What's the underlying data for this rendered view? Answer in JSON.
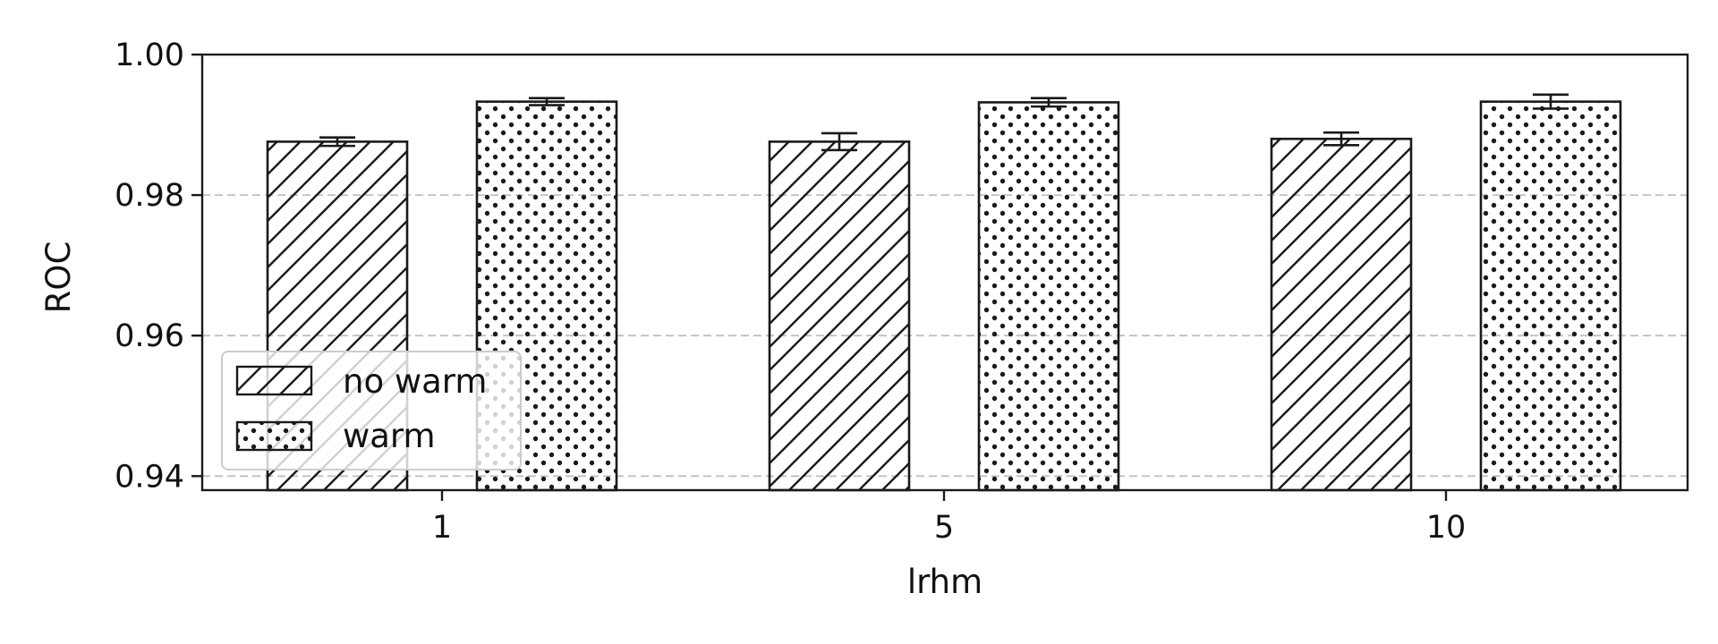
{
  "chart_data": {
    "type": "bar",
    "title": "",
    "xlabel": "lrhm",
    "ylabel": "ROC",
    "categories": [
      "1",
      "5",
      "10"
    ],
    "ylim": [
      0.938,
      1.0
    ],
    "yticks": [
      "0.94",
      "0.96",
      "0.98",
      "1.00"
    ],
    "ytick_values": [
      0.94,
      0.96,
      0.98,
      1.0
    ],
    "grid": "y-dashed",
    "legend_position": "lower-left",
    "series": [
      {
        "name": "no warm",
        "hatch": "diagonal",
        "values": [
          0.9876,
          0.9876,
          0.988
        ],
        "errors": [
          0.0006,
          0.0012,
          0.0009
        ]
      },
      {
        "name": "warm",
        "hatch": "dots",
        "values": [
          0.9933,
          0.9932,
          0.9933
        ],
        "errors": [
          0.0005,
          0.0006,
          0.001
        ]
      }
    ],
    "colors": {
      "bar_fill": "#ffffff",
      "edge": "#1a1a1a",
      "grid": "#c0c0c0"
    }
  }
}
